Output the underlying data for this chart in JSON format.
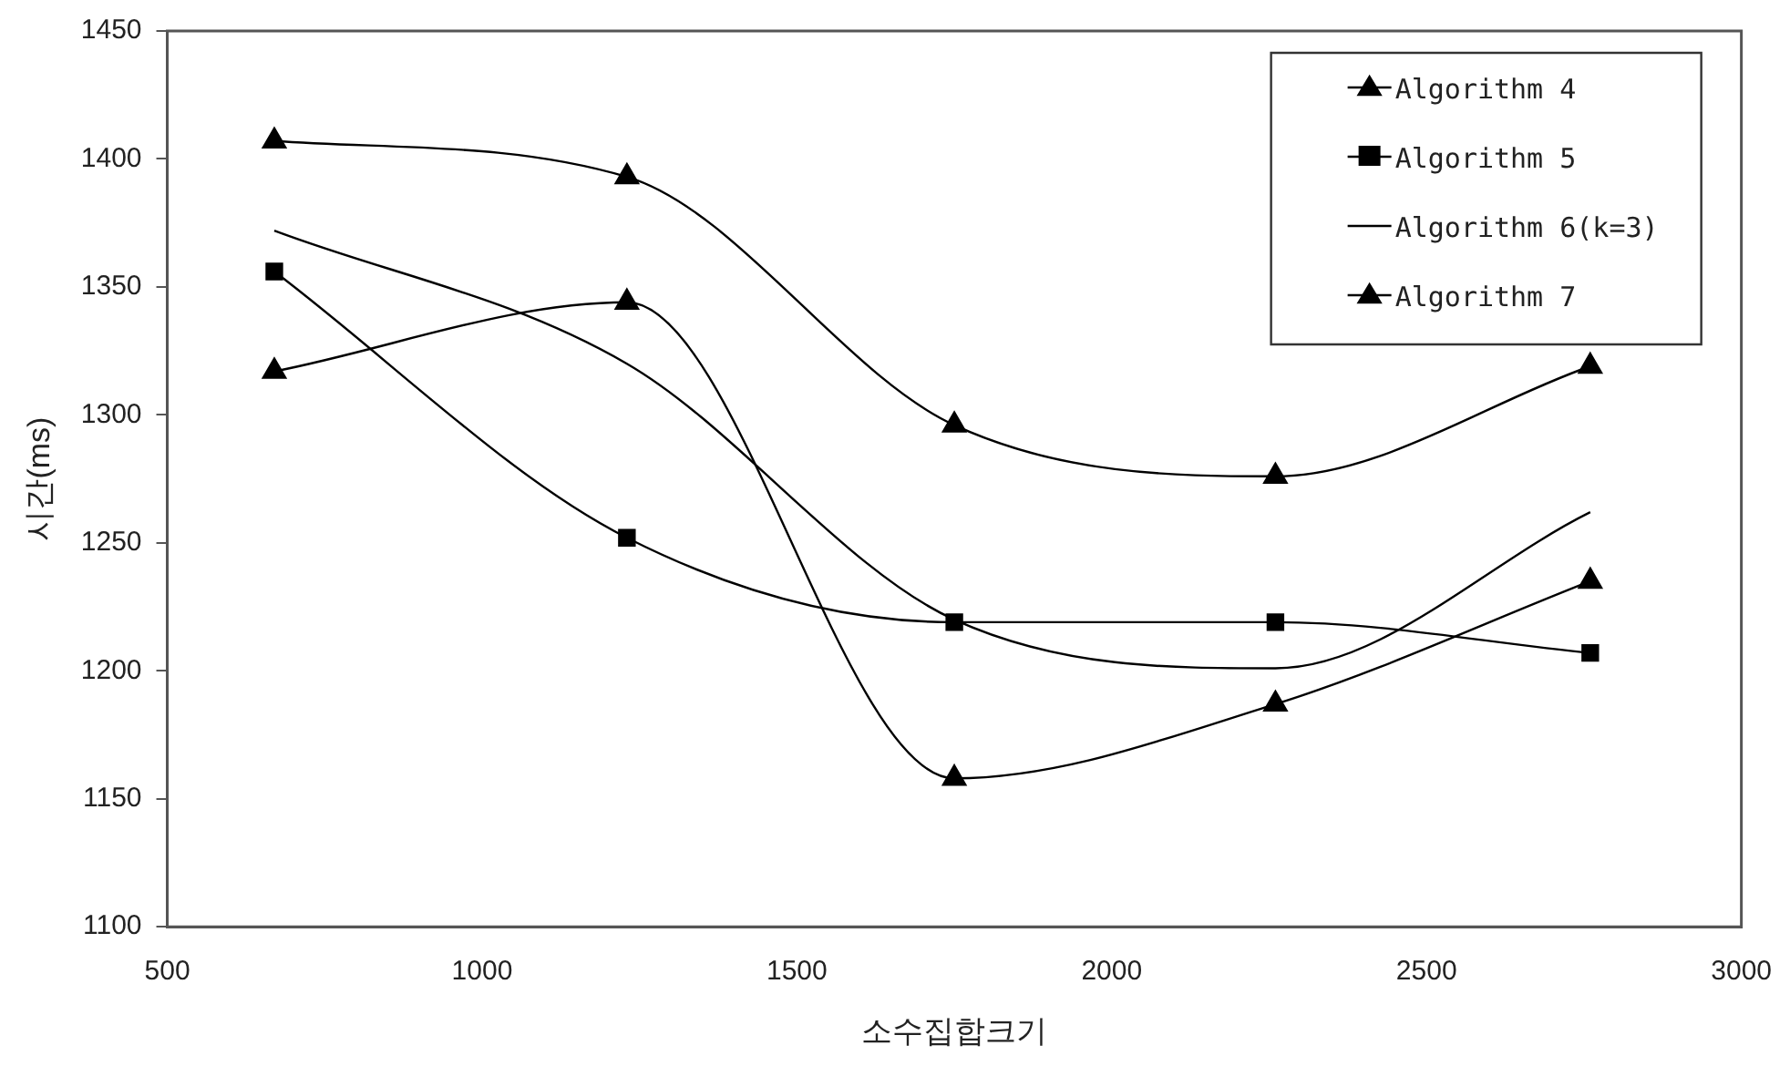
{
  "chart_data": {
    "type": "line",
    "xlabel": "소수집합크기",
    "ylabel": "시간(ms)",
    "xlim": [
      500,
      3000
    ],
    "xticks": [
      500,
      1000,
      1500,
      2000,
      2500,
      3000
    ],
    "ylim": [
      1100,
      1450
    ],
    "yticks": [
      1100,
      1150,
      1200,
      1250,
      1300,
      1350,
      1400,
      1450
    ],
    "x": [
      670,
      1230,
      1750,
      2260,
      2760
    ],
    "grid": false,
    "legend": "top right",
    "series": [
      {
        "name": "Algorithm 4",
        "color": "#000000",
        "marker": "triangle",
        "values": [
          1407,
          1393,
          1296,
          1276,
          1319
        ]
      },
      {
        "name": "Algorithm 5",
        "color": "#000000",
        "marker": "square",
        "values": [
          1356,
          1252,
          1219,
          1219,
          1207
        ]
      },
      {
        "name": "Algorithm 6(k=3)",
        "color": "#000000",
        "marker": "none",
        "values": [
          1372,
          1320,
          1220,
          1201,
          1262
        ]
      },
      {
        "name": "Algorithm 7",
        "color": "#000000",
        "marker": "triangle",
        "values": [
          1317,
          1344,
          1158,
          1187,
          1235
        ]
      }
    ]
  }
}
